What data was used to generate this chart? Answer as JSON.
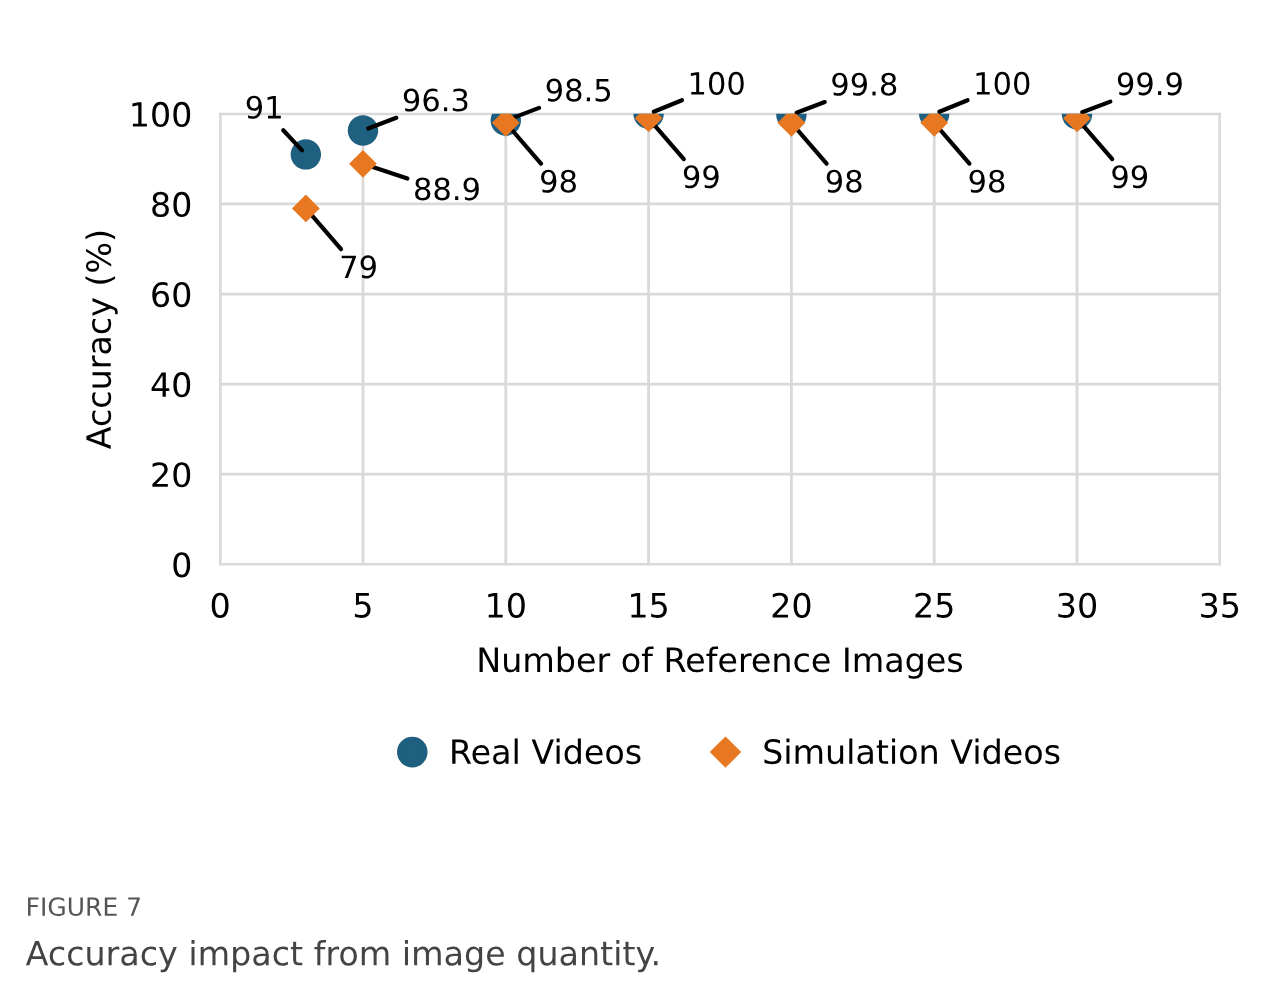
{
  "chart_data": {
    "type": "scatter",
    "xlabel": "Number of Reference Images",
    "ylabel": "Accuracy (%)",
    "x": [
      3,
      5,
      10,
      15,
      20,
      25,
      30
    ],
    "series": [
      {
        "name": "Real Videos",
        "color": "#1f5f7f",
        "marker": "circle",
        "values": [
          91,
          96.3,
          98.5,
          100,
          99.8,
          100,
          99.9
        ]
      },
      {
        "name": "Simulation Videos",
        "color": "#e87722",
        "marker": "diamond",
        "values": [
          79,
          88.9,
          98,
          99,
          98,
          98,
          99
        ]
      }
    ],
    "xlim": [
      0,
      35
    ],
    "xticks": [
      0,
      5,
      10,
      15,
      20,
      25,
      30,
      35
    ],
    "ylim": [
      0,
      100
    ],
    "yticks": [
      0,
      20,
      40,
      60,
      80,
      100
    ],
    "grid": true,
    "legend": "bottom",
    "data_labels": true,
    "annotations": [
      "FIGURE 7",
      "Accuracy impact from image quantity."
    ]
  }
}
